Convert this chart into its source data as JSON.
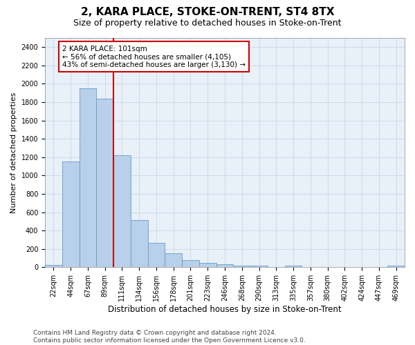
{
  "title": "2, KARA PLACE, STOKE-ON-TRENT, ST4 8TX",
  "subtitle": "Size of property relative to detached houses in Stoke-on-Trent",
  "xlabel": "Distribution of detached houses by size in Stoke-on-Trent",
  "ylabel": "Number of detached properties",
  "categories": [
    "22sqm",
    "44sqm",
    "67sqm",
    "89sqm",
    "111sqm",
    "134sqm",
    "156sqm",
    "178sqm",
    "201sqm",
    "223sqm",
    "246sqm",
    "268sqm",
    "290sqm",
    "313sqm",
    "335sqm",
    "357sqm",
    "380sqm",
    "402sqm",
    "424sqm",
    "447sqm",
    "469sqm"
  ],
  "values": [
    25,
    1155,
    1950,
    1840,
    1220,
    515,
    265,
    155,
    75,
    45,
    35,
    18,
    15,
    5,
    18,
    0,
    0,
    0,
    0,
    0,
    18
  ],
  "bar_color": "#b8d0ea",
  "bar_edge_color": "#6699cc",
  "vline_x": 4,
  "vline_color": "#cc0000",
  "annotation_text": "2 KARA PLACE: 101sqm\n← 56% of detached houses are smaller (4,105)\n43% of semi-detached houses are larger (3,130) →",
  "annotation_box_color": "#cc0000",
  "ylim": [
    0,
    2500
  ],
  "yticks": [
    0,
    200,
    400,
    600,
    800,
    1000,
    1200,
    1400,
    1600,
    1800,
    2000,
    2200,
    2400
  ],
  "grid_color": "#c8d8e8",
  "bg_color": "#e8f0f8",
  "footer": "Contains HM Land Registry data © Crown copyright and database right 2024.\nContains public sector information licensed under the Open Government Licence v3.0.",
  "title_fontsize": 11,
  "subtitle_fontsize": 9,
  "xlabel_fontsize": 8.5,
  "ylabel_fontsize": 8,
  "tick_fontsize": 7,
  "annotation_fontsize": 7.5,
  "footer_fontsize": 6.5
}
